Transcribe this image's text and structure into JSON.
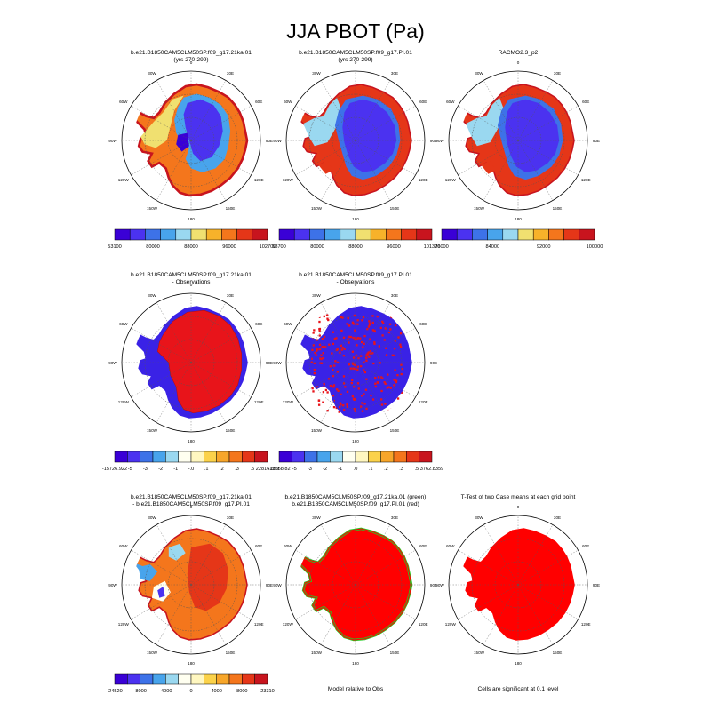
{
  "figure_title": "JJA PBOT (Pa)",
  "lon_labels": [
    "0",
    "30E",
    "60E",
    "90E",
    "120E",
    "150E",
    "180",
    "150W",
    "120W",
    "90W",
    "60W",
    "30W"
  ],
  "colors": {
    "seq": [
      "#3a00d6",
      "#4b32f0",
      "#3d72e8",
      "#48a4ec",
      "#9ad8f0",
      "#f0e070",
      "#f7b22a",
      "#f4761c",
      "#e53618",
      "#c8141e"
    ],
    "diff": [
      "#3a00d6",
      "#4b32f0",
      "#3d72e8",
      "#48a4ec",
      "#9ad8f0",
      "#fffff0",
      "#fff7c0",
      "#fbd24a",
      "#f7a62a",
      "#f4761c",
      "#e53618",
      "#c8141e"
    ],
    "land_blue": "#3a22e6",
    "land_red": "#e8141a",
    "sig_red": "#ff0000",
    "green": "#22cc22"
  },
  "panels": [
    {
      "title1": "b.e21.B1850CAM5CLM50SP.f09_g17.21ka.01",
      "title2": "(yrs 270-299)",
      "cbar_labels": [
        "53100",
        "80000",
        "88000",
        "96000",
        "102700"
      ]
    },
    {
      "title1": "b.e21.B1850CAM5CLM50SP.f09_g17.PI.01",
      "title2": "(yrs 270-299)",
      "cbar_labels": [
        "53700",
        "80000",
        "88000",
        "96000",
        "101300"
      ]
    },
    {
      "title1": "RACMO2.3_p2",
      "title2": "",
      "cbar_labels": [
        "76000",
        "84000",
        "92000",
        "100000"
      ]
    },
    {
      "title1": "b.e21.B1850CAM5CLM50SP.f09_g17.21ka.01",
      "title2": "- Observations",
      "cbar_labels": [
        "-15726.922",
        "-5",
        "-3",
        "-2",
        "-1",
        "-.0",
        ".1",
        ".2",
        ".3",
        ".5",
        "22816.859"
      ]
    },
    {
      "title1": "b.e21.B1850CAM5CLM50SP.f09_g17.PI.01",
      "title2": "- Observations",
      "cbar_labels": [
        "-13058.82",
        "-5",
        "-3",
        "-2",
        "-1",
        ".0",
        ".1",
        ".2",
        ".3",
        ".5",
        "3762.8359"
      ]
    },
    {
      "title1": "b.e21.B1850CAM5CLM50SP.f09_g17.21ka.01",
      "title2": "- b.e21.B1850CAM5CLM50SP.f09_g17.PI.01",
      "cbar_labels": [
        "-24520",
        "-8000",
        "-4000",
        "0",
        "4000",
        "8000",
        "23310"
      ]
    },
    {
      "title1": "b.e21.B1850CAM5CLM50SP.f09_g17.21ka.01 (green)",
      "title2": "b.e21.B1850CAM5CLM50SP.f09_g17.PI.01 (red)",
      "note": "Model relative to Obs"
    },
    {
      "title1": "T-Test of two Case means at each grid point",
      "title2": "",
      "note": "Cells are significant at 0.1 level"
    }
  ],
  "chart_data": {
    "type": "heatmap",
    "title": "JJA PBOT (Pa)",
    "variable": "PBOT",
    "season": "JJA",
    "units": "Pa",
    "panels": [
      {
        "name": "21ka",
        "case": "b.e21.B1850CAM5CLM50SP.f09_g17.21ka.01",
        "years": "yrs 270-299",
        "range": [
          53100,
          102700
        ],
        "ticks": [
          80000,
          88000,
          96000
        ]
      },
      {
        "name": "PI",
        "case": "b.e21.B1850CAM5CLM50SP.f09_g17.PI.01",
        "years": "yrs 270-299",
        "range": [
          53700,
          101300
        ],
        "ticks": [
          80000,
          88000,
          96000
        ]
      },
      {
        "name": "Obs",
        "case": "RACMO2.3_p2",
        "ticks": [
          76000,
          84000,
          92000,
          100000
        ]
      },
      {
        "name": "21ka - Obs",
        "range": [
          -15726.922,
          22816.859
        ]
      },
      {
        "name": "PI - Obs",
        "range": [
          -13058.82,
          3762.8359
        ]
      },
      {
        "name": "21ka - PI",
        "range": [
          -24520,
          23310
        ],
        "ticks": [
          -8000,
          -4000,
          0,
          4000,
          8000
        ]
      },
      {
        "name": "Model relative to Obs"
      },
      {
        "name": "T-Test",
        "significance_level": 0.1
      }
    ]
  }
}
